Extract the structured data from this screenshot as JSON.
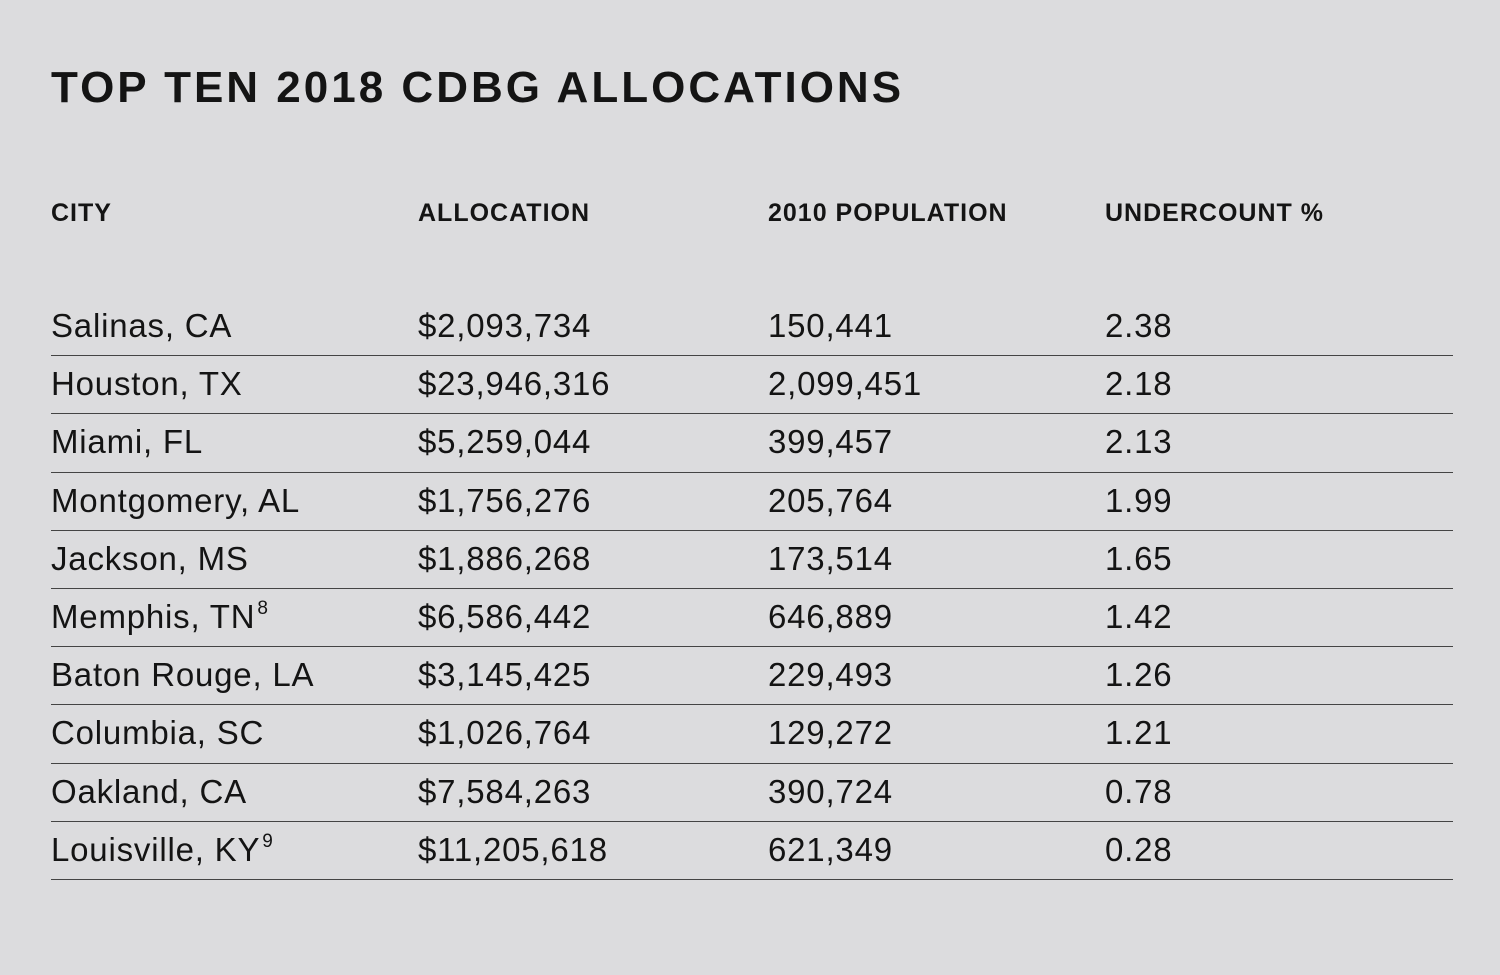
{
  "title": "TOP TEN 2018 CDBG ALLOCATIONS",
  "headers": [
    "CITY",
    "ALLOCATION",
    "2010 POPULATION",
    "UNDERCOUNT %"
  ],
  "rows": [
    {
      "city": "Salinas, CA",
      "footnote": "",
      "allocation": "$2,093,734",
      "population": "150,441",
      "undercount": "2.38"
    },
    {
      "city": "Houston, TX",
      "footnote": "",
      "allocation": "$23,946,316",
      "population": "2,099,451",
      "undercount": "2.18"
    },
    {
      "city": "Miami, FL",
      "footnote": "",
      "allocation": "$5,259,044",
      "population": "399,457",
      "undercount": "2.13"
    },
    {
      "city": "Montgomery, AL",
      "footnote": "",
      "allocation": "$1,756,276",
      "population": "205,764",
      "undercount": "1.99"
    },
    {
      "city": "Jackson, MS",
      "footnote": "",
      "allocation": "$1,886,268",
      "population": "173,514",
      "undercount": "1.65"
    },
    {
      "city": "Memphis, TN",
      "footnote": "8",
      "allocation": "$6,586,442",
      "population": "646,889",
      "undercount": "1.42"
    },
    {
      "city": "Baton Rouge, LA",
      "footnote": "",
      "allocation": "$3,145,425",
      "population": "229,493",
      "undercount": "1.26"
    },
    {
      "city": "Columbia, SC",
      "footnote": "",
      "allocation": "$1,026,764",
      "population": "129,272",
      "undercount": "1.21"
    },
    {
      "city": "Oakland, CA",
      "footnote": "",
      "allocation": "$7,584,263",
      "population": "390,724",
      "undercount": "0.78"
    },
    {
      "city": "Louisville, KY",
      "footnote": "9",
      "allocation": "$11,205,618",
      "population": "621,349",
      "undercount": "0.28"
    }
  ]
}
